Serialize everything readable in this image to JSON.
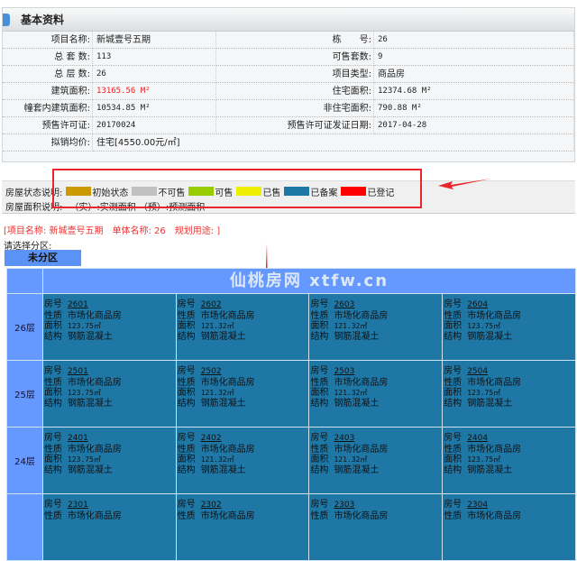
{
  "panel": {
    "title": "基本资料"
  },
  "info": [
    {
      "l1": "项目名称:",
      "v1": "新城壹号五期",
      "l2": "栋　　号:",
      "v2": "26"
    },
    {
      "l1": "总 套 数:",
      "v1": "113",
      "l2": "可售套数:",
      "v2": "9"
    },
    {
      "l1": "总 层 数:",
      "v1": "26",
      "l2": "项目类型:",
      "v2": "商品房"
    },
    {
      "l1": "建筑面积:",
      "v1": "13165.56 M²",
      "l2": "住宅面积:",
      "v2": "12374.68 M²"
    },
    {
      "l1": "幢套内建筑面积:",
      "v1": "10534.85 M²",
      "l2": "非住宅面积:",
      "v2": "790.88 M²"
    },
    {
      "l1": "预售许可证:",
      "v1": "20170024",
      "l2": "预售许可证发证日期:",
      "v2": "2017-04-28"
    },
    {
      "l1": "拟销均价:",
      "v1": "住宅[4550.00元/㎡]"
    }
  ],
  "legend": {
    "status_label": "房屋状态说明:",
    "area_label": "房屋面积说明:",
    "area_text": "（实）:实测面积 （预）:预测面积",
    "items": [
      {
        "label": "初始状态",
        "color": "#cc9900"
      },
      {
        "label": "不可售",
        "color": "#c0c0c0"
      },
      {
        "label": "可售",
        "color": "#99cc00"
      },
      {
        "label": "已售",
        "color": "#eeee00"
      },
      {
        "label": "已备案",
        "color": "#1f77a6"
      },
      {
        "label": "已登记",
        "color": "#ff0000"
      }
    ]
  },
  "project_line": "[项目名称: 新城壹号五期　单体名称: 26　规划用途: ]",
  "select_zone_label": "请选择分区:",
  "zone_button": "未分区",
  "field_labels": {
    "no": "房号",
    "nature": "性质",
    "area": "面积",
    "struct": "结构"
  },
  "floors": [
    {
      "floor": "26层",
      "units": [
        {
          "no": "2601",
          "nature": "市场化商品房",
          "area": "123.75㎡",
          "struct": "钢筋混凝土"
        },
        {
          "no": "2602",
          "nature": "市场化商品房",
          "area": "121.32㎡",
          "struct": "钢筋混凝土"
        },
        {
          "no": "2603",
          "nature": "市场化商品房",
          "area": "121.32㎡",
          "struct": "钢筋混凝土"
        },
        {
          "no": "2604",
          "nature": "市场化商品房",
          "area": "123.75㎡",
          "struct": "钢筋混凝土"
        }
      ]
    },
    {
      "floor": "25层",
      "units": [
        {
          "no": "2501",
          "nature": "市场化商品房",
          "area": "123.75㎡",
          "struct": "钢筋混凝土"
        },
        {
          "no": "2502",
          "nature": "市场化商品房",
          "area": "121.32㎡",
          "struct": "钢筋混凝土"
        },
        {
          "no": "2503",
          "nature": "市场化商品房",
          "area": "121.32㎡",
          "struct": "钢筋混凝土"
        },
        {
          "no": "2504",
          "nature": "市场化商品房",
          "area": "123.75㎡",
          "struct": "钢筋混凝土"
        }
      ]
    },
    {
      "floor": "24层",
      "units": [
        {
          "no": "2401",
          "nature": "市场化商品房",
          "area": "123.75㎡",
          "struct": "钢筋混凝土"
        },
        {
          "no": "2402",
          "nature": "市场化商品房",
          "area": "121.32㎡",
          "struct": "钢筋混凝土"
        },
        {
          "no": "2403",
          "nature": "市场化商品房",
          "area": "121.32㎡",
          "struct": "钢筋混凝土"
        },
        {
          "no": "2404",
          "nature": "市场化商品房",
          "area": "123.75㎡",
          "struct": "钢筋混凝土"
        }
      ]
    },
    {
      "floor": "",
      "units": [
        {
          "no": "2301",
          "nature": "市场化商品房"
        },
        {
          "no": "2302",
          "nature": "市场化商品房"
        },
        {
          "no": "2303",
          "nature": "市场化商品房"
        },
        {
          "no": "2304",
          "nature": "市场化商品房"
        }
      ]
    }
  ],
  "watermark": "仙桃房网 xtfw.cn"
}
